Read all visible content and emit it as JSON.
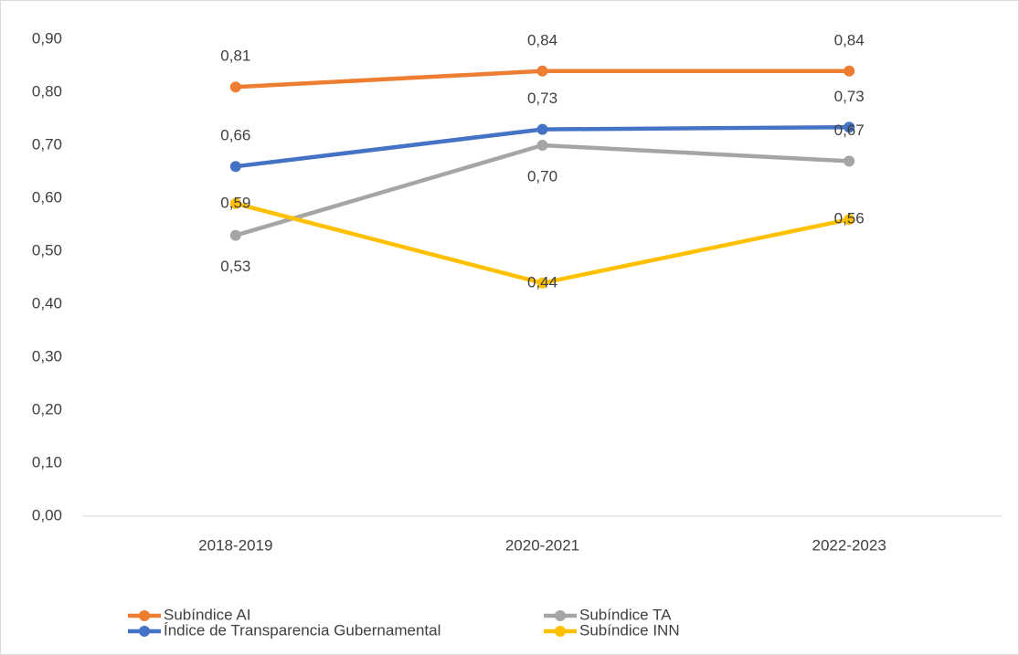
{
  "chart_data": {
    "type": "line",
    "categories": [
      "2018-2019",
      "2020-2021",
      "2022-2023"
    ],
    "series": [
      {
        "name": "Subíndice AI",
        "color": "#ed7d31",
        "values": [
          0.81,
          0.84,
          0.84
        ],
        "value_labels": [
          "0,81",
          "0,84",
          "0,84"
        ]
      },
      {
        "name": "Subíndice TA",
        "color": "#a5a5a5",
        "values": [
          0.53,
          0.7,
          0.67
        ],
        "value_labels": [
          "0,53",
          "0,70",
          "0,67"
        ]
      },
      {
        "name": "Índice de Transparencia Gubernamental",
        "color": "#4472c4",
        "values": [
          0.66,
          0.73,
          0.734
        ],
        "value_labels": [
          "0,66",
          "0,73",
          "0,73"
        ]
      },
      {
        "name": "Subíndice INN",
        "color": "#ffc000",
        "values": [
          0.59,
          0.44,
          0.56
        ],
        "value_labels": [
          "0,59",
          "0,44",
          "0,56"
        ]
      }
    ],
    "ylim": [
      0,
      0.9
    ],
    "yticks": [
      {
        "value": 0,
        "label": "0,00"
      },
      {
        "value": 0.1,
        "label": "0,10"
      },
      {
        "value": 0.2,
        "label": "0,20"
      },
      {
        "value": 0.3,
        "label": "0,30"
      },
      {
        "value": 0.4,
        "label": "0,40"
      },
      {
        "value": 0.5,
        "label": "0,50"
      },
      {
        "value": 0.6,
        "label": "0,60"
      },
      {
        "value": 0.7,
        "label": "0,70"
      },
      {
        "value": 0.8,
        "label": "0,80"
      },
      {
        "value": 0.9,
        "label": "0,90"
      }
    ],
    "grid": false
  }
}
